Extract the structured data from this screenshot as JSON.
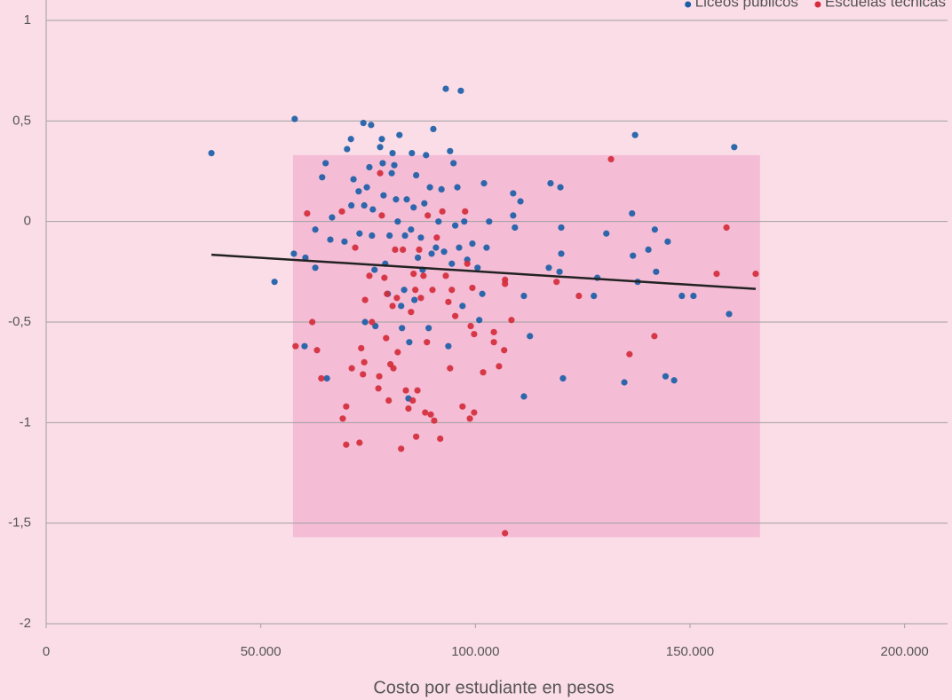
{
  "chart_data": {
    "type": "scatter",
    "x_label": "Costo por estudiante en pesos",
    "xlim": [
      0,
      210000
    ],
    "xticks": [
      0,
      {
        "value": 50000,
        "label": "50.000"
      },
      {
        "value": 100000,
        "label": "100.000"
      },
      {
        "value": 150000,
        "label": "150.000"
      },
      {
        "value": 200000,
        "label": "200.000"
      }
    ],
    "ylim": [
      -2,
      1
    ],
    "yticks": [
      {
        "value": -2,
        "label": "-2"
      },
      {
        "value": -1.5,
        "label": "-1,5"
      },
      {
        "value": -1,
        "label": "-1"
      },
      {
        "value": -0.5,
        "label": "-0,5"
      },
      0,
      {
        "value": 0.5,
        "label": "0,5"
      },
      1
    ],
    "grid": true,
    "legend": "top-right",
    "shaded_region": {
      "x": [
        57500,
        166300
      ],
      "y": [
        -1.57,
        0.33
      ],
      "color": "#f4bcd5"
    },
    "trendline": {
      "x": [
        38500,
        165300
      ],
      "y": [
        -0.165,
        -0.335
      ],
      "color": "#222222"
    },
    "series": [
      {
        "name": "Liceos públicos",
        "color": "#1c5ea8",
        "x": [
          38500,
          53200,
          57900,
          57700,
          60400,
          60200,
          62700,
          62700,
          64300,
          65100,
          65400,
          66200,
          66600,
          69500,
          70100,
          71000,
          71100,
          71600,
          72800,
          73000,
          73900,
          74100,
          74300,
          74700,
          75300,
          75700,
          75900,
          76100,
          76500,
          76700,
          77800,
          78200,
          78400,
          78600,
          79000,
          79600,
          80000,
          80500,
          80700,
          81100,
          81500,
          81900,
          82300,
          82700,
          82900,
          83400,
          83600,
          84000,
          84400,
          84600,
          85000,
          85200,
          85600,
          85800,
          86200,
          86600,
          87300,
          87700,
          88100,
          88500,
          89100,
          89400,
          89800,
          90200,
          90800,
          91400,
          92100,
          92700,
          93100,
          93700,
          94100,
          94500,
          94900,
          95300,
          95800,
          96200,
          96600,
          97000,
          97400,
          98100,
          99300,
          100500,
          100900,
          101600,
          102000,
          102600,
          103200,
          108800,
          108800,
          109200,
          110500,
          111300,
          111300,
          112700,
          117500,
          117100,
          119800,
          120000,
          120000,
          119600,
          120400,
          127600,
          128400,
          130500,
          134700,
          136500,
          137200,
          136700,
          137800,
          140300,
          141800,
          142100,
          144300,
          144800,
          146300,
          148100,
          150800,
          159100,
          160300
        ],
        "values": [
          0.34,
          -0.3,
          0.51,
          -0.16,
          -0.18,
          -0.62,
          -0.04,
          -0.23,
          0.22,
          0.29,
          -0.78,
          -0.09,
          0.02,
          -0.1,
          0.36,
          0.41,
          0.08,
          0.21,
          0.15,
          -0.06,
          0.49,
          0.08,
          -0.5,
          0.17,
          0.27,
          0.48,
          -0.07,
          0.06,
          -0.24,
          -0.52,
          0.37,
          0.41,
          0.29,
          0.13,
          -0.21,
          -0.36,
          -0.07,
          0.24,
          0.34,
          0.28,
          0.11,
          0.0,
          0.43,
          -0.42,
          -0.53,
          -0.34,
          -0.07,
          0.11,
          -0.88,
          -0.6,
          -0.04,
          0.34,
          0.07,
          -0.39,
          0.23,
          -0.18,
          -0.08,
          -0.24,
          0.09,
          0.33,
          -0.53,
          0.17,
          -0.16,
          0.46,
          -0.13,
          0.0,
          0.16,
          -0.15,
          0.66,
          -0.62,
          0.35,
          -0.21,
          0.29,
          -0.02,
          0.17,
          -0.13,
          0.65,
          -0.42,
          0.0,
          -0.19,
          -0.11,
          -0.23,
          -0.49,
          -0.36,
          0.19,
          -0.13,
          0.0,
          0.14,
          0.03,
          -0.03,
          0.1,
          -0.37,
          -0.87,
          -0.57,
          0.19,
          -0.23,
          0.17,
          -0.03,
          -0.16,
          -0.25,
          -0.78,
          -0.37,
          -0.28,
          -0.06,
          -0.8,
          0.04,
          0.43,
          -0.17,
          -0.3,
          -0.14,
          -0.04,
          -0.25,
          -0.77,
          -0.1,
          -0.79,
          -0.37,
          -0.37,
          -0.46,
          0.37
        ]
      },
      {
        "name": "Escuelas técnicas",
        "color": "#d42d3b",
        "x": [
          58100,
          60800,
          62000,
          63100,
          64100,
          69100,
          68900,
          69900,
          69900,
          71200,
          72000,
          73000,
          73400,
          73800,
          74100,
          74300,
          75300,
          75900,
          77400,
          77600,
          77800,
          78200,
          78800,
          79200,
          79400,
          79800,
          80200,
          80700,
          80900,
          81300,
          81700,
          81900,
          82700,
          83100,
          83800,
          84400,
          85000,
          85400,
          85600,
          86000,
          86200,
          86500,
          86900,
          87300,
          87900,
          88300,
          88700,
          88900,
          89600,
          90000,
          90400,
          91000,
          91800,
          92300,
          93100,
          93700,
          94100,
          94500,
          95300,
          97000,
          97600,
          98100,
          98700,
          98900,
          99300,
          99700,
          99700,
          101800,
          104300,
          104300,
          105500,
          106700,
          106900,
          106900,
          106900,
          108400,
          118900,
          124100,
          131600,
          135900,
          141700,
          156200,
          158500,
          165300
        ],
        "values": [
          -0.62,
          0.04,
          -0.5,
          -0.64,
          -0.78,
          -0.98,
          0.05,
          -1.11,
          -0.92,
          -0.73,
          -0.13,
          -1.1,
          -0.63,
          -0.76,
          -0.7,
          -0.39,
          -0.27,
          -0.5,
          -0.83,
          -0.77,
          0.24,
          0.03,
          -0.28,
          -0.58,
          -0.36,
          -0.89,
          -0.71,
          -0.42,
          -0.73,
          -0.14,
          -0.38,
          -0.65,
          -1.13,
          -0.14,
          -0.84,
          -0.93,
          -0.45,
          -0.89,
          -0.26,
          -0.34,
          -1.07,
          -0.84,
          -0.14,
          -0.38,
          -0.27,
          -0.95,
          -0.6,
          0.03,
          -0.96,
          -0.34,
          -0.99,
          -0.08,
          -1.08,
          0.05,
          -0.27,
          -0.4,
          -0.73,
          -0.34,
          -0.47,
          -0.92,
          0.05,
          -0.21,
          -0.98,
          -0.52,
          -0.33,
          -0.95,
          -0.56,
          -0.75,
          -0.55,
          -0.6,
          -0.72,
          -0.64,
          -0.29,
          -0.31,
          -1.55,
          -0.49,
          -0.3,
          -0.37,
          0.31,
          -0.66,
          -0.57,
          -0.26,
          -0.03,
          -0.26
        ]
      }
    ]
  }
}
